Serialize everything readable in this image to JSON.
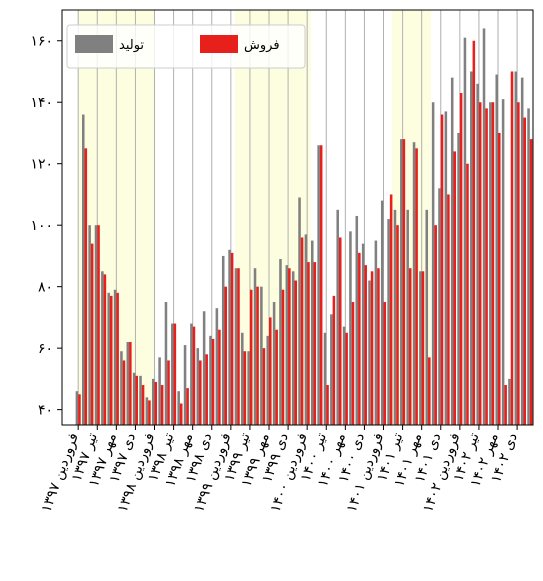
{
  "chart_data": {
    "type": "bar",
    "categories": [
      "فروردین ۱۳۹۷",
      null,
      null,
      "تیر ۱۳۹۷",
      null,
      null,
      "مهر ۱۳۹۷",
      null,
      null,
      "دی ۱۳۹۷",
      null,
      null,
      "فروردین ۱۳۹۸",
      null,
      null,
      "تیر ۱۳۹۸",
      null,
      null,
      "مهر ۱۳۹۸",
      null,
      null,
      "دی ۱۳۹۸",
      null,
      null,
      "فروردین ۱۳۹۹",
      null,
      null,
      "تیر ۱۳۹۹",
      null,
      null,
      "مهر ۱۳۹۹",
      null,
      null,
      "دی ۱۳۹۹",
      null,
      null,
      "فروردین ۱۴۰۰",
      null,
      null,
      "تیر ۱۴۰۰",
      null,
      null,
      "مهر ۱۴۰۰",
      null,
      null,
      "دی ۱۴۰۰",
      null,
      null,
      "فروردین ۱۴۰۱",
      null,
      null,
      "تیر ۱۴۰۱",
      null,
      null,
      "مهر ۱۴۰۱",
      null,
      null,
      "دی ۱۴۰۱",
      null,
      null,
      "فروردین ۱۴۰۲",
      null,
      null,
      "تیر ۱۴۰۲",
      null,
      null,
      "مهر ۱۴۰۲",
      null,
      null,
      "دی ۱۴۰۲",
      null,
      null
    ],
    "series": [
      {
        "name": "تولید",
        "color": "#808080",
        "values": [
          46,
          136,
          100,
          100,
          85,
          78,
          79,
          59,
          62,
          52,
          51,
          44,
          50,
          57,
          75,
          68,
          46,
          61,
          68,
          60,
          72,
          64,
          73,
          90,
          92,
          86,
          65,
          59,
          86,
          80,
          64,
          75,
          89,
          87,
          85,
          109,
          97,
          95,
          126,
          65,
          71,
          105,
          67,
          98,
          103,
          94,
          82,
          95,
          108,
          102,
          105,
          128,
          105,
          127,
          85,
          105,
          140,
          112,
          137,
          148,
          130,
          161,
          150,
          146,
          164,
          140,
          149,
          141,
          50,
          150,
          148,
          138
        ]
      },
      {
        "name": "فروش",
        "color": "#e8201c",
        "values": [
          45,
          125,
          94,
          100,
          84,
          77,
          78,
          56,
          62,
          51,
          48,
          43,
          49,
          48,
          56,
          68,
          42,
          47,
          67,
          56,
          58,
          63,
          66,
          80,
          91,
          86,
          59,
          79,
          80,
          60,
          70,
          66,
          79,
          86,
          82,
          96,
          88,
          88,
          126,
          48,
          77,
          96,
          65,
          75,
          91,
          87,
          85,
          86,
          75,
          110,
          100,
          128,
          86,
          125,
          85,
          57,
          100,
          136,
          110,
          124,
          143,
          120,
          160,
          140,
          138,
          140,
          130,
          48,
          150,
          140,
          135,
          128
        ]
      }
    ],
    "ylim": [
      35,
      170
    ],
    "yticks": [
      {
        "value": 40,
        "label": "۴۰"
      },
      {
        "value": 60,
        "label": "۶۰"
      },
      {
        "value": 80,
        "label": "۸۰"
      },
      {
        "value": 100,
        "label": "۱۰۰"
      },
      {
        "value": 120,
        "label": "۱۲۰"
      },
      {
        "value": 140,
        "label": "۱۴۰"
      },
      {
        "value": 160,
        "label": "۱۶۰"
      }
    ],
    "grid": true,
    "legend": "upper left"
  }
}
